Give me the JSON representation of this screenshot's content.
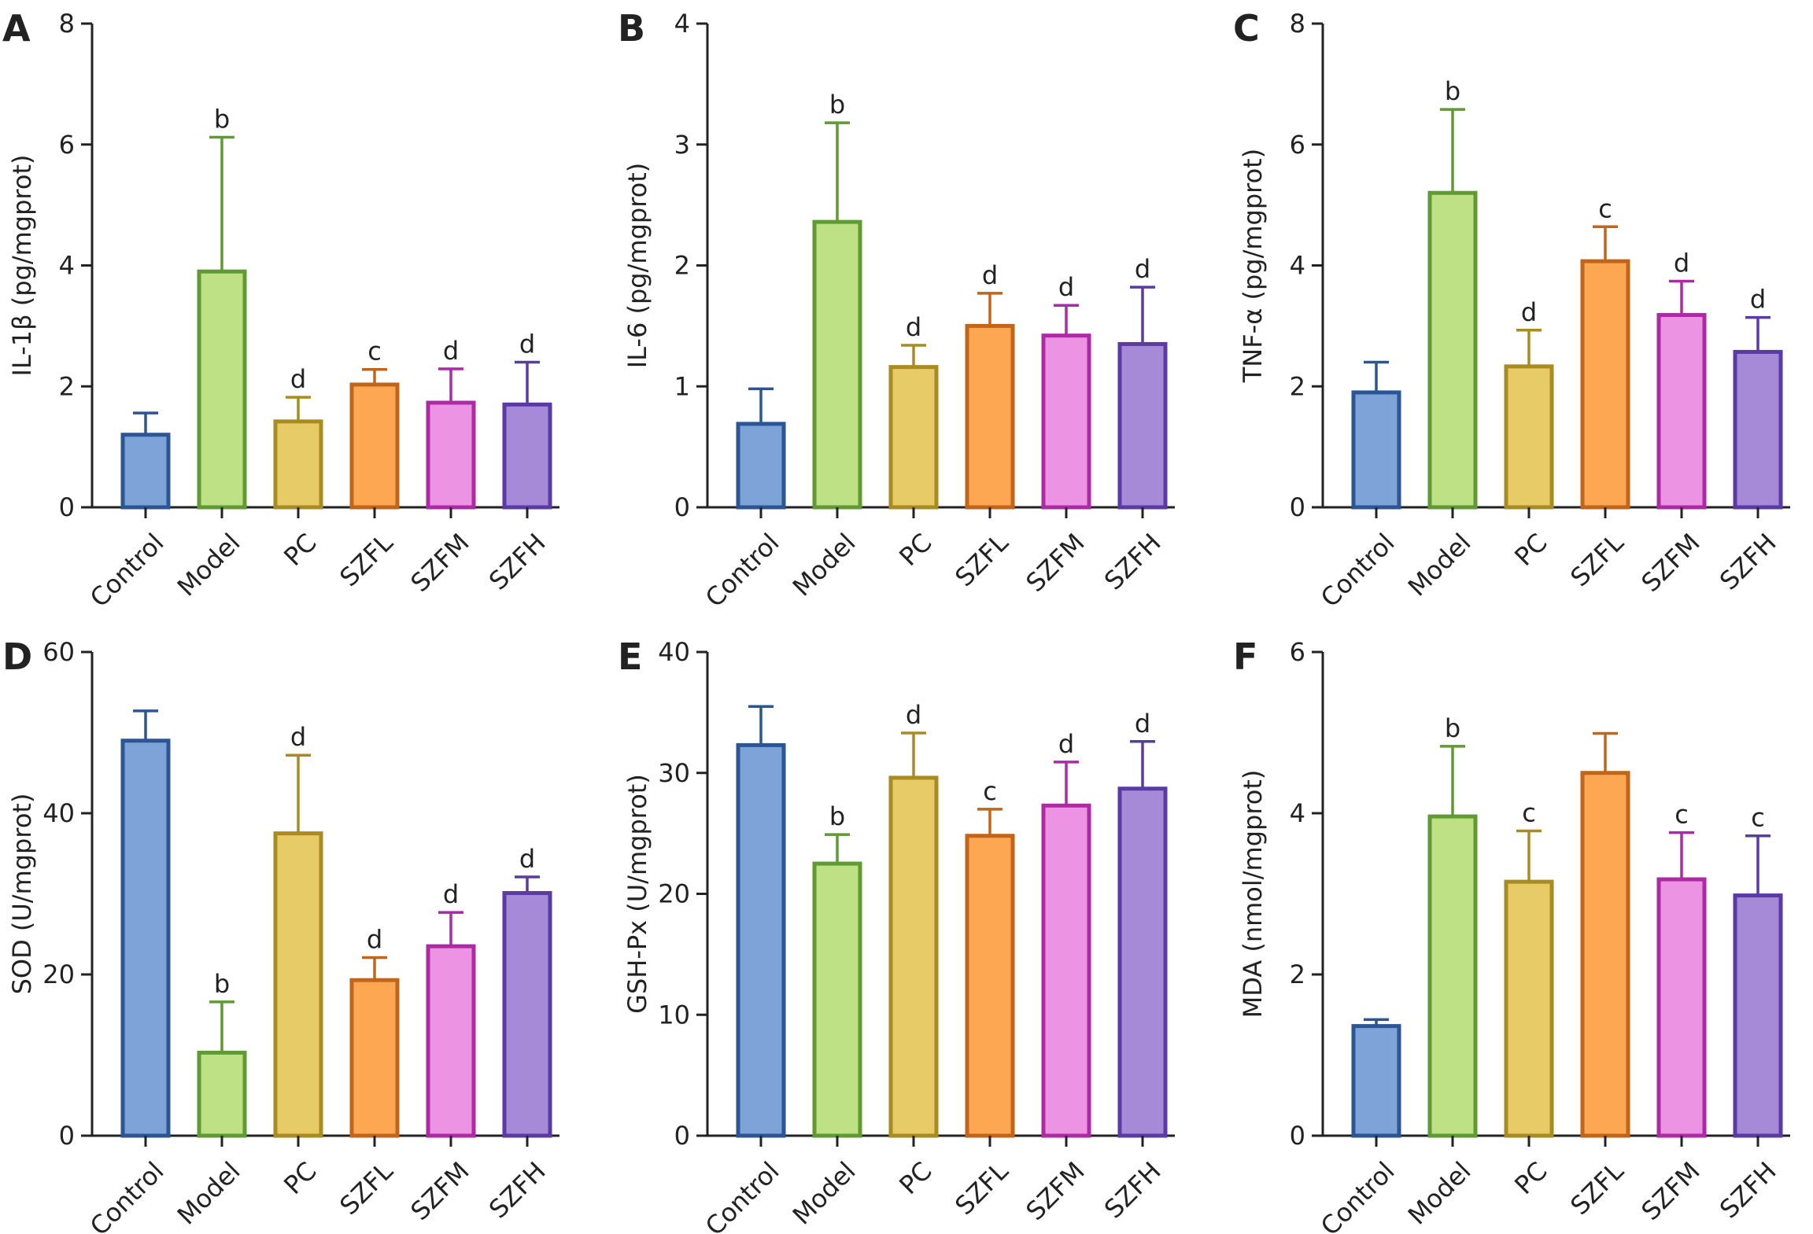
{
  "group_styles": [
    {
      "fill": "#7ea3d8",
      "stroke": "#2c5595"
    },
    {
      "fill": "#bde184",
      "stroke": "#5f9a34"
    },
    {
      "fill": "#e6cb66",
      "stroke": "#a98b22"
    },
    {
      "fill": "#fda752",
      "stroke": "#c0651a"
    },
    {
      "fill": "#ec93e4",
      "stroke": "#ac2aa3"
    },
    {
      "fill": "#a68ad8",
      "stroke": "#5a3aa3"
    }
  ],
  "chart_data": [
    {
      "type": "bar",
      "panel": "A",
      "categories": [
        "Control",
        "Model",
        "PC",
        "SZFL",
        "SZFM",
        "SZFH"
      ],
      "values": [
        1.2,
        3.9,
        1.42,
        2.03,
        1.73,
        1.7
      ],
      "errors": [
        0.36,
        2.22,
        0.4,
        0.25,
        0.56,
        0.7
      ],
      "labels": [
        "",
        "b",
        "d",
        "c",
        "d",
        "d"
      ],
      "ylabel": "IL-1β (pg/mgprot)",
      "ylim": [
        0,
        8
      ],
      "yticks": [
        "0",
        "2",
        "4",
        "6",
        "8"
      ]
    },
    {
      "type": "bar",
      "panel": "B",
      "categories": [
        "Control",
        "Model",
        "PC",
        "SZFL",
        "SZFM",
        "SZFH"
      ],
      "values": [
        0.69,
        2.36,
        1.16,
        1.5,
        1.42,
        1.35
      ],
      "errors": [
        0.29,
        0.82,
        0.18,
        0.27,
        0.25,
        0.47
      ],
      "labels": [
        "",
        "b",
        "d",
        "d",
        "d",
        "d"
      ],
      "ylabel": "IL-6 (pg/mgprot)",
      "ylim": [
        0,
        4
      ],
      "yticks": [
        "0",
        "1",
        "2",
        "3",
        "4"
      ]
    },
    {
      "type": "bar",
      "panel": "C",
      "categories": [
        "Control",
        "Model",
        "PC",
        "SZFL",
        "SZFM",
        "SZFH"
      ],
      "values": [
        1.9,
        5.2,
        2.33,
        4.07,
        3.18,
        2.57
      ],
      "errors": [
        0.5,
        1.38,
        0.6,
        0.57,
        0.56,
        0.57
      ],
      "labels": [
        "",
        "b",
        "d",
        "c",
        "d",
        "d"
      ],
      "ylabel": "TNF-α (pg/mgprot)",
      "ylim": [
        0,
        8
      ],
      "yticks": [
        "0",
        "2",
        "4",
        "6",
        "8"
      ]
    },
    {
      "type": "bar",
      "panel": "D",
      "categories": [
        "Control",
        "Model",
        "PC",
        "SZFL",
        "SZFM",
        "SZFH"
      ],
      "values": [
        49,
        10.3,
        37.5,
        19.3,
        23.5,
        30.1
      ],
      "errors": [
        3.7,
        6.3,
        9.7,
        2.8,
        4.2,
        2
      ],
      "labels": [
        "",
        "b",
        "d",
        "d",
        "d",
        "d"
      ],
      "ylabel": "SOD (U/mgprot)",
      "ylim": [
        0,
        60
      ],
      "yticks": [
        "0",
        "20",
        "40",
        "60"
      ]
    },
    {
      "type": "bar",
      "panel": "E",
      "categories": [
        "Control",
        "Model",
        "PC",
        "SZFL",
        "SZFM",
        "SZFH"
      ],
      "values": [
        32.3,
        22.5,
        29.6,
        24.8,
        27.3,
        28.7
      ],
      "errors": [
        3.2,
        2.4,
        3.7,
        2.2,
        3.6,
        3.9
      ],
      "labels": [
        "",
        "b",
        "d",
        "c",
        "d",
        "d"
      ],
      "ylabel": "GSH-Px (U/mgprot)",
      "ylim": [
        0,
        40
      ],
      "yticks": [
        "0",
        "10",
        "20",
        "30",
        "40"
      ]
    },
    {
      "type": "bar",
      "panel": "F",
      "categories": [
        "Control",
        "Model",
        "PC",
        "SZFL",
        "SZFM",
        "SZFH"
      ],
      "values": [
        1.36,
        3.96,
        3.15,
        4.5,
        3.18,
        2.98
      ],
      "errors": [
        0.08,
        0.87,
        0.63,
        0.49,
        0.58,
        0.74
      ],
      "labels": [
        "",
        "b",
        "c",
        "",
        "c",
        "c"
      ],
      "ylabel": "MDA (nmol/mgprot)",
      "ylim": [
        0,
        6
      ],
      "yticks": [
        "0",
        "2",
        "4",
        "6"
      ]
    }
  ]
}
